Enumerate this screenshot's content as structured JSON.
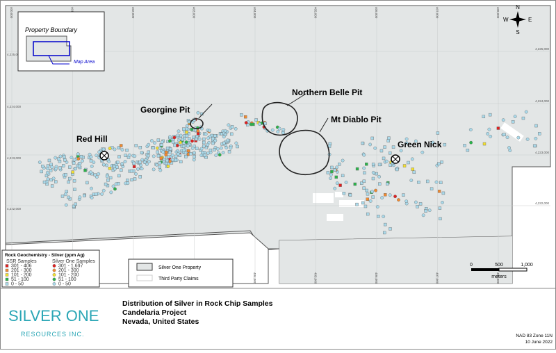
{
  "inset": {
    "title": "Property Boundary",
    "area": "Map Area"
  },
  "compass": {
    "n": "N",
    "e": "E",
    "s": "S",
    "w": "W"
  },
  "places": [
    "Red Hill",
    "Georgine Pit",
    "Northern Belle Pit",
    "Mt Diablo Pit",
    "Green Nick"
  ],
  "northings": [
    "4,225,000",
    "4,224,000",
    "4,223,000",
    "4,222,000"
  ],
  "eastings": [
    "400,000",
    "401,000",
    "402,000",
    "403,000",
    "404,000",
    "405,000",
    "406,000",
    "407,000",
    "408,000"
  ],
  "legend": {
    "title": "Rock Geochemistry - Silver (ppm Ag)",
    "ssr": {
      "heading": "SSR Samples",
      "items": [
        "301 - 406",
        "201 - 300",
        "101 - 200",
        "51 - 100",
        "0 - 50"
      ]
    },
    "one": {
      "heading": "Silver One Samples",
      "items": [
        "301 - 1,697",
        "201 - 300",
        "101 - 200",
        "51 - 100",
        "0 - 50"
      ]
    }
  },
  "areas": [
    "Silver One Property",
    "Third Party Claims"
  ],
  "scale": {
    "ticks": [
      "0",
      "500",
      "1,000"
    ],
    "unit": "meters"
  },
  "footer": {
    "logo": "SILVER ONE",
    "logo_sub": "RESOURCES INC.",
    "title": "Distribution of Silver in Rock Chip Samples",
    "project": "Candelaria Project",
    "location": "Nevada, United States",
    "datum": "NAD 83 Zone 11N",
    "date": "10 June 2022"
  }
}
